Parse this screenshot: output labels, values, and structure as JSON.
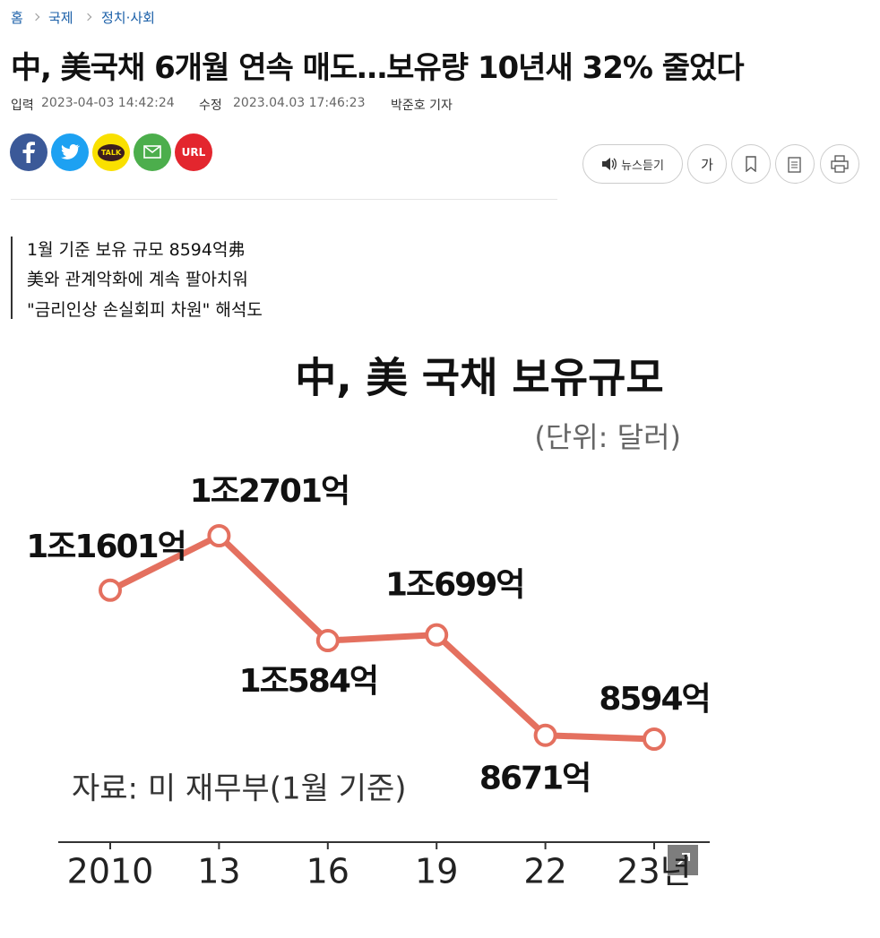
{
  "breadcrumb": [
    "홈",
    "국제",
    "정치·사회"
  ],
  "headline": "中, 美국채 6개월 연속 매도…보유량 10년새 32% 줄었다",
  "meta": {
    "input_label": "입력",
    "input_date": "2023-04-03 14:42:24",
    "edit_label": "수정",
    "edit_date": "2023.04.03 17:46:23",
    "reporter": "박준호 기자"
  },
  "share": {
    "kakao": "TALK",
    "url": "URL"
  },
  "tools": {
    "listen": "뉴스듣기",
    "font": "가"
  },
  "summary": [
    "1월 기준 보유 규모 8594억弗",
    "美와 관계악화에 계속 팔아치워",
    "\"금리인상 손실회피 차원\" 해석도"
  ],
  "chart_data": {
    "type": "line",
    "title": "中, 美 국채 보유규모",
    "subtitle": "(단위: 달러)",
    "source": "자료: 미 재무부(1월 기준)",
    "categories": [
      "2010",
      "13",
      "16",
      "19",
      "22",
      "23년"
    ],
    "values": [
      11601,
      12701,
      10584,
      10699,
      8671,
      8594
    ],
    "value_labels": [
      "1조1601억",
      "1조2701억",
      "1조584억",
      "1조699억",
      "8671억",
      "8594억"
    ],
    "color": "#e4705f"
  }
}
